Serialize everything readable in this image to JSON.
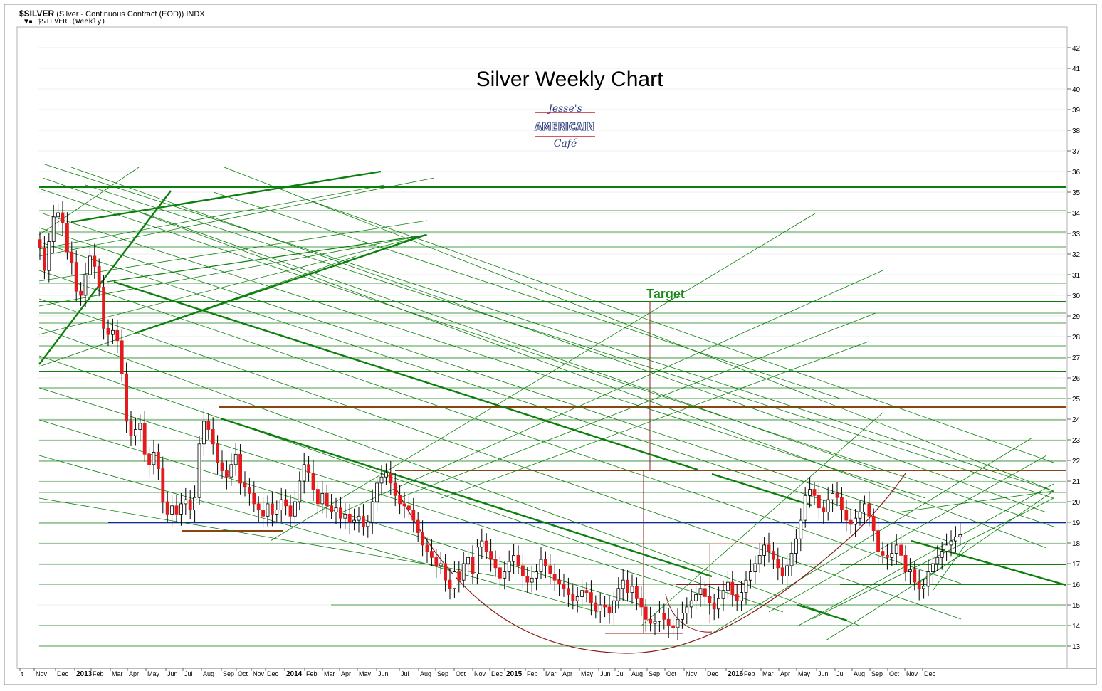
{
  "header": {
    "symbol": "$SILVER",
    "description": "(Silver - Continuous Contract (EOD))",
    "exchange": "INDX",
    "subtitle": "$SILVER (Weekly)"
  },
  "logo_text": [
    "Jesse's",
    "AMERICAIN",
    "Café"
  ],
  "chart_data": {
    "type": "candlestick",
    "title": "Silver Weekly Chart",
    "annotation": "Target",
    "ylim": [
      12.4,
      42.6
    ],
    "y_ticks": [
      13,
      14,
      15,
      16,
      17,
      18,
      19,
      20,
      21,
      22,
      23,
      24,
      25,
      26,
      27,
      28,
      29,
      30,
      31,
      32,
      33,
      34,
      35,
      36,
      37,
      38,
      39,
      40,
      41,
      42
    ],
    "x_labels": [
      "t",
      "Nov",
      "Dec",
      "2013",
      "Feb",
      "Mar",
      "Apr",
      "May",
      "Jun",
      "Jul",
      "Aug",
      "Sep",
      "Oct",
      "Nov",
      "Dec",
      "2014",
      "Feb",
      "Mar",
      "Apr",
      "May",
      "Jun",
      "Jul",
      "Aug",
      "Sep",
      "Oct",
      "Nov",
      "Dec",
      "2015",
      "Feb",
      "Mar",
      "Apr",
      "May",
      "Jun",
      "Jul",
      "Aug",
      "Sep",
      "Oct",
      "Nov",
      "Dec",
      "2016",
      "Feb",
      "Mar",
      "Apr",
      "May",
      "Jun",
      "Jul",
      "Aug",
      "Sep",
      "Oct",
      "Nov",
      "Dec"
    ],
    "weekly_close": [
      32.3,
      31.2,
      32.6,
      33.8,
      34.0,
      33.5,
      32.1,
      31.6,
      30.2,
      30.0,
      31.0,
      31.9,
      31.4,
      30.4,
      28.4,
      28.1,
      28.3,
      27.8,
      26.2,
      23.9,
      23.2,
      23.5,
      23.8,
      22.3,
      21.8,
      22.4,
      21.6,
      20.0,
      19.4,
      19.8,
      19.4,
      19.9,
      20.1,
      19.6,
      20.2,
      22.8,
      23.9,
      23.5,
      22.8,
      21.9,
      21.5,
      21.2,
      21.8,
      22.3,
      20.9,
      20.7,
      20.4,
      19.9,
      19.6,
      19.3,
      19.9,
      19.4,
      19.6,
      20.1,
      19.8,
      19.3,
      20.0,
      21.0,
      21.8,
      21.4,
      20.6,
      19.9,
      20.4,
      19.8,
      19.5,
      19.7,
      19.2,
      19.4,
      19.0,
      19.1,
      19.3,
      18.8,
      19.0,
      20.0,
      20.9,
      21.2,
      21.4,
      20.9,
      20.3,
      19.9,
      19.8,
      19.6,
      19.1,
      18.5,
      17.9,
      17.6,
      17.3,
      16.9,
      17.0,
      16.2,
      15.8,
      16.6,
      16.2,
      17.0,
      17.3,
      16.5,
      17.8,
      18.1,
      17.6,
      17.2,
      16.8,
      16.3,
      16.6,
      17.1,
      17.4,
      16.9,
      16.4,
      16.1,
      16.3,
      16.6,
      17.2,
      16.9,
      16.5,
      16.2,
      16.0,
      15.8,
      15.5,
      15.2,
      15.4,
      15.7,
      15.6,
      15.1,
      14.7,
      15.0,
      14.9,
      14.6,
      15.2,
      15.8,
      16.2,
      15.6,
      15.9,
      15.3,
      14.9,
      14.3,
      14.1,
      14.2,
      14.6,
      14.3,
      14.0,
      13.9,
      14.3,
      14.6,
      14.9,
      15.2,
      15.5,
      15.8,
      15.4,
      15.1,
      14.8,
      15.3,
      15.7,
      16.1,
      15.5,
      15.2,
      15.6,
      16.2,
      16.6,
      17.0,
      17.4,
      17.9,
      17.6,
      17.2,
      16.8,
      16.4,
      16.9,
      17.5,
      18.2,
      19.1,
      20.3,
      20.6,
      20.3,
      19.7,
      19.5,
      20.1,
      20.4,
      20.2,
      19.6,
      19.1,
      18.9,
      19.2,
      19.5,
      19.9,
      19.3,
      18.6,
      17.6,
      17.4,
      17.3,
      17.5,
      17.9,
      17.4,
      16.6,
      16.7,
      16.1,
      15.8,
      15.9,
      16.6,
      17.0,
      17.3,
      17.6,
      17.9,
      18.1,
      18.3,
      18.4
    ]
  },
  "colors": {
    "up_body": "#ffffff",
    "down_body": "#e41a1c",
    "green_line": "#0c7f0c",
    "brown_line": "#8b4513",
    "blue_line": "#1a1ac8",
    "maroon_curve": "#8b1a1a",
    "title": "#000000",
    "target_label": "#1a8a1a",
    "logo_blue": "#2b3a7a",
    "logo_red": "#c8202a"
  }
}
